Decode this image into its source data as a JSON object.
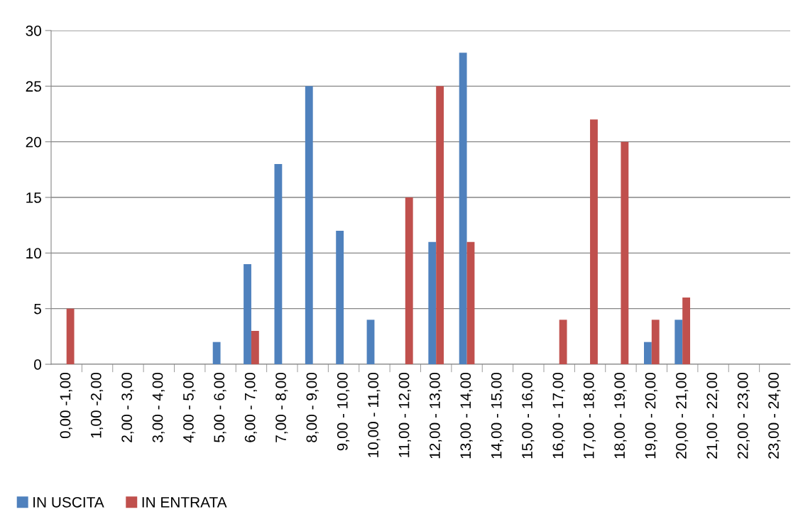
{
  "chart_data": {
    "type": "bar",
    "categories": [
      "0,00 -1,00",
      "1,00 -2,00",
      "2,00 - 3,00",
      "3,00 - 4,00",
      "4,00 - 5,00",
      "5,00 - 6,00",
      "6,00 - 7,00",
      "7,00 - 8,00",
      "8,00 - 9,00",
      "9,00 - 10,00",
      "10,00 - 11,00",
      "11,00 - 12,00",
      "12,00 - 13,00",
      "13,00 - 14,00",
      "14,00 - 15,00",
      "15,00 - 16,00",
      "16,00 - 17,00",
      "17,00 - 18,00",
      "18,00 - 19,00",
      "19,00 - 20,00",
      "20,00 - 21,00",
      "21,00 - 22,00",
      "22,00 - 23,00",
      "23,00 - 24,00"
    ],
    "series": [
      {
        "name": "IN USCITA",
        "color": "#4f81bd",
        "values": [
          0,
          0,
          0,
          0,
          0,
          2,
          9,
          18,
          25,
          12,
          4,
          0,
          11,
          28,
          0,
          0,
          0,
          0,
          0,
          2,
          4,
          0,
          0,
          0
        ]
      },
      {
        "name": "IN ENTRATA",
        "color": "#c0504d",
        "values": [
          5,
          0,
          0,
          0,
          0,
          0,
          3,
          0,
          0,
          0,
          0,
          15,
          25,
          11,
          0,
          0,
          4,
          22,
          20,
          4,
          6,
          0,
          0,
          0
        ]
      }
    ],
    "ylim": [
      0,
      30
    ],
    "yticks": [
      0,
      5,
      10,
      15,
      20,
      25,
      30
    ],
    "grid": "y",
    "legend": "bottom left"
  }
}
